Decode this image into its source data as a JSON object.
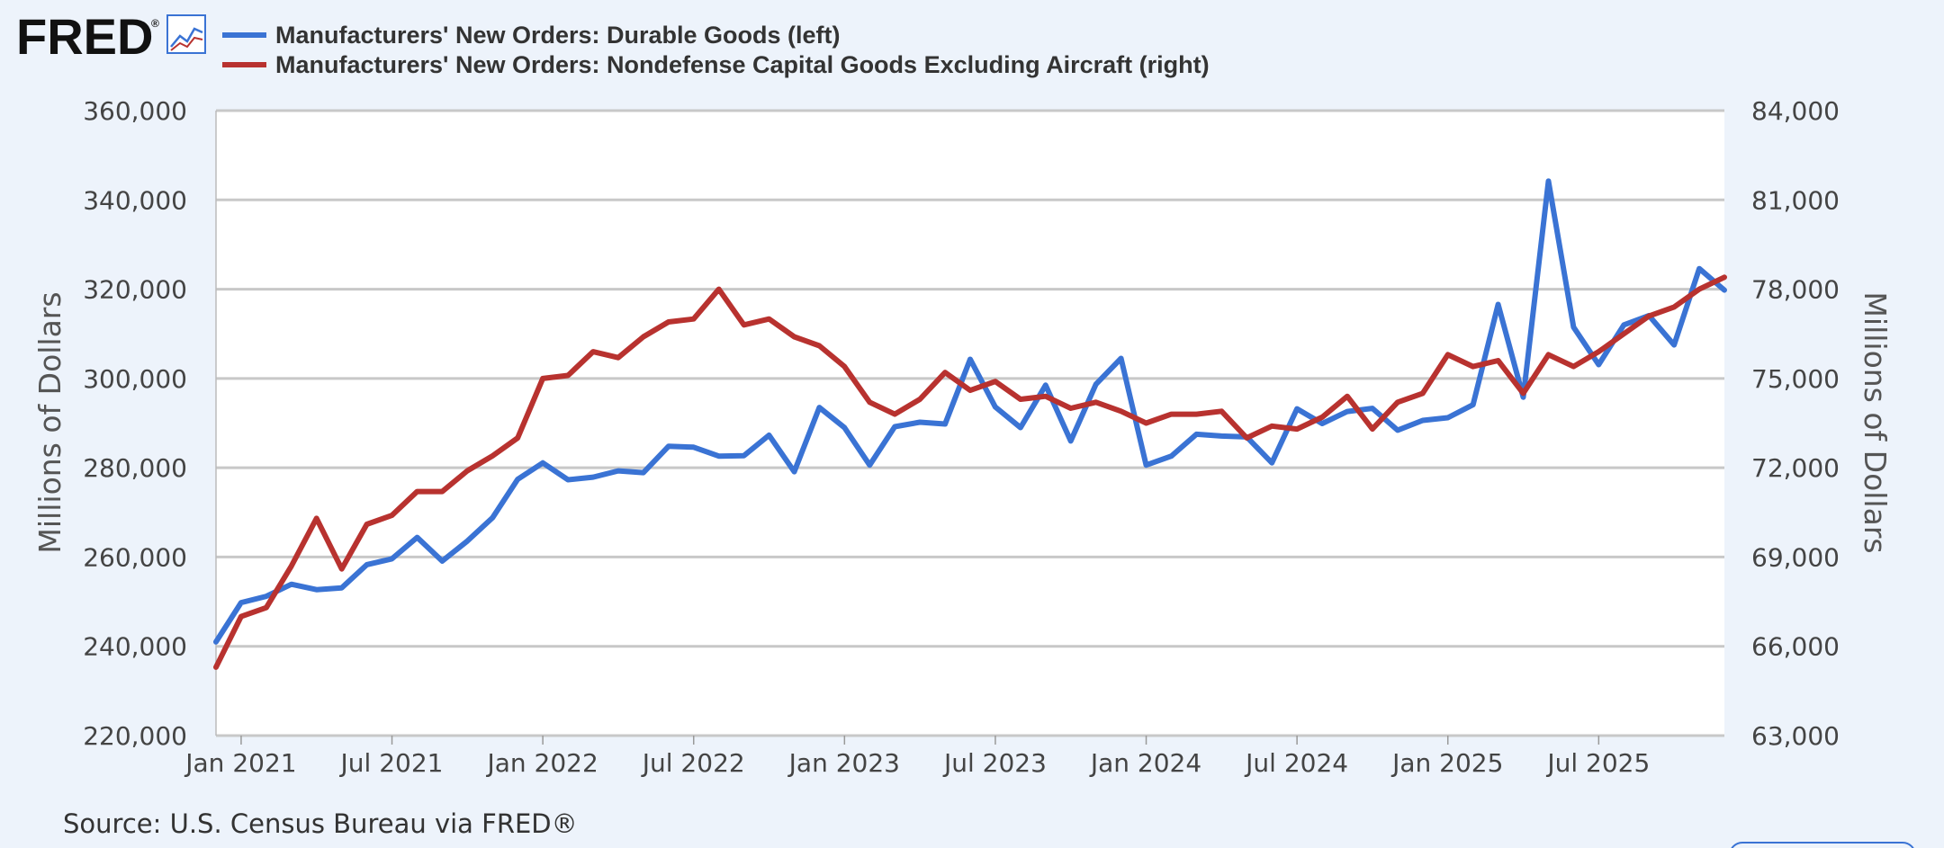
{
  "branding": {
    "logo_text": "FRED",
    "logo_icon": "line-chart-icon"
  },
  "source": "Source: U.S. Census Bureau via FRED®",
  "colors": {
    "background": "#edf3fb",
    "plot_background": "#ffffff",
    "grid": "#c8c8c8",
    "series_left": "#3a73d4",
    "series_right": "#b8322f"
  },
  "chart_data": {
    "type": "line",
    "title": "",
    "xlabel": "",
    "ylabel_left": "Millions of Dollars",
    "ylabel_right": "Millions of Dollars",
    "grid": true,
    "legend_position": "top-left",
    "x_start": "2020-12",
    "x_end": "2025-12",
    "x_ticks": [
      {
        "date": "2021-01",
        "label": "Jan 2021"
      },
      {
        "date": "2021-07",
        "label": "Jul 2021"
      },
      {
        "date": "2022-01",
        "label": "Jan 2022"
      },
      {
        "date": "2022-07",
        "label": "Jul 2022"
      },
      {
        "date": "2023-01",
        "label": "Jan 2023"
      },
      {
        "date": "2023-07",
        "label": "Jul 2023"
      },
      {
        "date": "2024-01",
        "label": "Jan 2024"
      },
      {
        "date": "2024-07",
        "label": "Jul 2024"
      },
      {
        "date": "2025-01",
        "label": "Jan 2025"
      },
      {
        "date": "2025-07",
        "label": "Jul 2025"
      }
    ],
    "y_left": {
      "min": 220000,
      "max": 360000,
      "ticks": [
        220000,
        240000,
        260000,
        280000,
        300000,
        320000,
        340000,
        360000
      ],
      "tick_labels": [
        "220,000",
        "240,000",
        "260,000",
        "280,000",
        "300,000",
        "320,000",
        "340,000",
        "360,000"
      ]
    },
    "y_right": {
      "min": 63000,
      "max": 84000,
      "ticks": [
        63000,
        66000,
        69000,
        72000,
        75000,
        78000,
        81000,
        84000
      ],
      "tick_labels": [
        "63,000",
        "66,000",
        "69,000",
        "72,000",
        "75,000",
        "78,000",
        "81,000",
        "84,000"
      ]
    },
    "series": [
      {
        "name": "Manufacturers' New Orders: Durable Goods (left)",
        "axis": "left",
        "color": "#3a73d4",
        "x": [
          "2020-12",
          "2021-01",
          "2021-02",
          "2021-03",
          "2021-04",
          "2021-05",
          "2021-06",
          "2021-07",
          "2021-08",
          "2021-09",
          "2021-10",
          "2021-11",
          "2021-12",
          "2022-01",
          "2022-02",
          "2022-03",
          "2022-04",
          "2022-05",
          "2022-06",
          "2022-07",
          "2022-08",
          "2022-09",
          "2022-10",
          "2022-11",
          "2022-12",
          "2023-01",
          "2023-02",
          "2023-03",
          "2023-04",
          "2023-05",
          "2023-06",
          "2023-07",
          "2023-08",
          "2023-09",
          "2023-10",
          "2023-11",
          "2023-12",
          "2024-01",
          "2024-02",
          "2024-03",
          "2024-04",
          "2024-05",
          "2024-06",
          "2024-07",
          "2024-08",
          "2024-09",
          "2024-10",
          "2024-11",
          "2024-12",
          "2025-01",
          "2025-02",
          "2025-03",
          "2025-04",
          "2025-05",
          "2025-06",
          "2025-07",
          "2025-08",
          "2025-09",
          "2025-10",
          "2025-11",
          "2025-12"
        ],
        "values": [
          241000,
          249800,
          251200,
          253900,
          252700,
          253100,
          258300,
          259600,
          264400,
          259100,
          263600,
          268800,
          277400,
          281100,
          277300,
          277900,
          279300,
          278900,
          284800,
          284600,
          282600,
          282700,
          287300,
          279100,
          293500,
          289000,
          280600,
          289200,
          290200,
          289800,
          304300,
          293600,
          289000,
          298500,
          286000,
          298700,
          304500,
          280600,
          282600,
          287500,
          287100,
          286900,
          281100,
          293200,
          289900,
          292600,
          293300,
          288400,
          290600,
          291200,
          294100,
          316600,
          295800,
          344200,
          311500,
          303100,
          312000,
          314100,
          307500,
          324600,
          319800
        ]
      },
      {
        "name": "Manufacturers' New Orders: Nondefense Capital Goods Excluding Aircraft (right)",
        "axis": "right",
        "color": "#b8322f",
        "x": [
          "2020-12",
          "2021-01",
          "2021-02",
          "2021-03",
          "2021-04",
          "2021-05",
          "2021-06",
          "2021-07",
          "2021-08",
          "2021-09",
          "2021-10",
          "2021-11",
          "2021-12",
          "2022-01",
          "2022-02",
          "2022-03",
          "2022-04",
          "2022-05",
          "2022-06",
          "2022-07",
          "2022-08",
          "2022-09",
          "2022-10",
          "2022-11",
          "2022-12",
          "2023-01",
          "2023-02",
          "2023-03",
          "2023-04",
          "2023-05",
          "2023-06",
          "2023-07",
          "2023-08",
          "2023-09",
          "2023-10",
          "2023-11",
          "2023-12",
          "2024-01",
          "2024-02",
          "2024-03",
          "2024-04",
          "2024-05",
          "2024-06",
          "2024-07",
          "2024-08",
          "2024-09",
          "2024-10",
          "2024-11",
          "2024-12",
          "2025-01",
          "2025-02",
          "2025-03",
          "2025-04",
          "2025-05",
          "2025-06",
          "2025-07",
          "2025-08",
          "2025-09",
          "2025-10",
          "2025-11",
          "2025-12"
        ],
        "values": [
          65300,
          67000,
          67300,
          68700,
          70300,
          68600,
          70100,
          70400,
          71200,
          71200,
          71900,
          72400,
          73000,
          75000,
          75100,
          75900,
          75700,
          76400,
          76900,
          77000,
          78000,
          76800,
          77000,
          76400,
          76100,
          75400,
          74200,
          73800,
          74300,
          75200,
          74600,
          74900,
          74300,
          74400,
          74000,
          74200,
          73900,
          73500,
          73800,
          73800,
          73900,
          73000,
          73400,
          73300,
          73700,
          74400,
          73300,
          74200,
          74500,
          75800,
          75400,
          75600,
          74500,
          75800,
          75400,
          75900,
          76500,
          77100,
          77400,
          78000,
          78400
        ]
      }
    ]
  }
}
